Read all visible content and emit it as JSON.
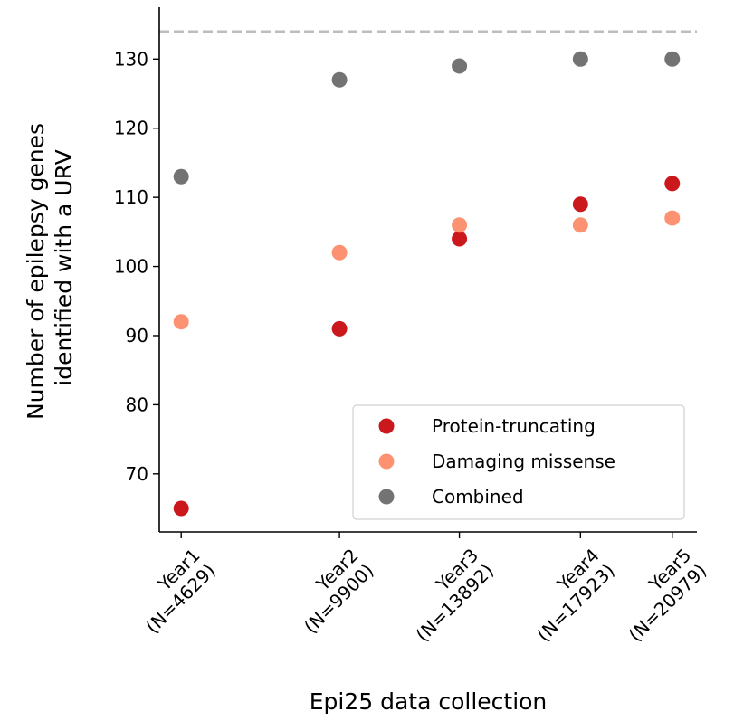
{
  "chart_data": {
    "type": "scatter",
    "xlabel": "Epi25 data collection",
    "ylabel_lines": [
      "Number of epilepsy genes",
      "identified with a URV"
    ],
    "x": [
      4629,
      9900,
      13892,
      17923,
      20979
    ],
    "x_tick_labels": [
      [
        "Year1",
        "(N=4629)"
      ],
      [
        "Year2",
        "(N=9900)"
      ],
      [
        "Year3",
        "(N=13892)"
      ],
      [
        "Year4",
        "(N=17923)"
      ],
      [
        "Year5",
        "(N=20979)"
      ]
    ],
    "y_ticks": [
      70,
      80,
      90,
      100,
      110,
      120,
      130
    ],
    "xlim": [
      3900,
      21800
    ],
    "ylim": [
      61.6,
      137.5
    ],
    "reference_line": {
      "y": 134,
      "style": "dashed",
      "color": "#bdbdbd"
    },
    "series": [
      {
        "name": "Protein-truncating",
        "color": "#cb181d",
        "values": [
          65,
          91,
          104,
          109,
          112
        ]
      },
      {
        "name": "Damaging missense",
        "color": "#fc9272",
        "values": [
          92,
          102,
          106,
          106,
          107
        ]
      },
      {
        "name": "Combined",
        "color": "#737373",
        "values": [
          113,
          127,
          129,
          130,
          130
        ]
      }
    ],
    "legend_position": "lower-right",
    "grid": false
  }
}
